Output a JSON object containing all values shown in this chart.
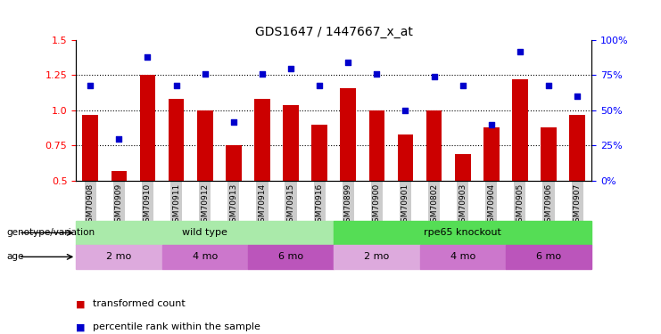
{
  "title": "GDS1647 / 1447667_x_at",
  "samples": [
    "GSM70908",
    "GSM70909",
    "GSM70910",
    "GSM70911",
    "GSM70912",
    "GSM70913",
    "GSM70914",
    "GSM70915",
    "GSM70916",
    "GSM70899",
    "GSM70900",
    "GSM70901",
    "GSM70802",
    "GSM70903",
    "GSM70904",
    "GSM70905",
    "GSM70906",
    "GSM70907"
  ],
  "bar_values": [
    0.97,
    0.57,
    1.25,
    1.08,
    1.0,
    0.75,
    1.08,
    1.04,
    0.9,
    1.16,
    1.0,
    0.83,
    1.0,
    0.69,
    0.88,
    1.22,
    0.88,
    0.97
  ],
  "pct_dots": [
    68,
    30,
    88,
    68,
    76,
    42,
    76,
    80,
    68,
    84,
    76,
    50,
    74,
    68,
    40,
    92,
    68,
    60
  ],
  "bar_color": "#cc0000",
  "dot_color": "#0000cc",
  "ylim_left": [
    0.5,
    1.5
  ],
  "ylim_right": [
    0,
    100
  ],
  "yticks_left": [
    0.5,
    0.75,
    1.0,
    1.25,
    1.5
  ],
  "yticks_right": [
    0,
    25,
    50,
    75,
    100
  ],
  "hlines": [
    0.75,
    1.0,
    1.25
  ],
  "genotype_groups": [
    {
      "label": "wild type",
      "start": 0,
      "end": 9,
      "color": "#aaeaaa"
    },
    {
      "label": "rpe65 knockout",
      "start": 9,
      "end": 18,
      "color": "#55dd55"
    }
  ],
  "age_colors": [
    "#ddaadd",
    "#cc77cc",
    "#bb55bb"
  ],
  "age_groups": [
    {
      "label": "2 mo",
      "start": 0,
      "end": 3,
      "cidx": 0
    },
    {
      "label": "4 mo",
      "start": 3,
      "end": 6,
      "cidx": 1
    },
    {
      "label": "6 mo",
      "start": 6,
      "end": 9,
      "cidx": 2
    },
    {
      "label": "2 mo",
      "start": 9,
      "end": 12,
      "cidx": 0
    },
    {
      "label": "4 mo",
      "start": 12,
      "end": 15,
      "cidx": 1
    },
    {
      "label": "6 mo",
      "start": 15,
      "end": 18,
      "cidx": 2
    }
  ],
  "legend_items": [
    {
      "label": "transformed count",
      "color": "#cc0000"
    },
    {
      "label": "percentile rank within the sample",
      "color": "#0000cc"
    }
  ],
  "label_genotype": "genotype/variation",
  "label_age": "age"
}
